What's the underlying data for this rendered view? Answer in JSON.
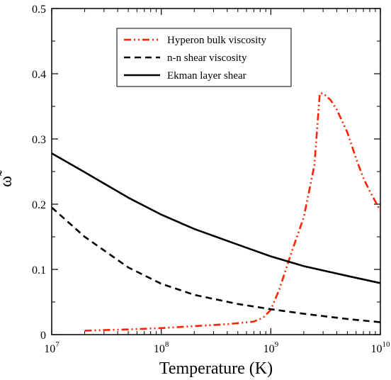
{
  "chart_data": {
    "type": "line",
    "xlabel": "Temperature (K)",
    "ylabel": "ω̃",
    "xscale": "log",
    "xlim": [
      10000000,
      10000000000
    ],
    "ylim": [
      0,
      0.5
    ],
    "grid": false,
    "legend_position": "top-center",
    "x_ticks": [
      {
        "value": 10000000,
        "base": "10",
        "exp": "7"
      },
      {
        "value": 100000000,
        "base": "10",
        "exp": "8"
      },
      {
        "value": 1000000000,
        "base": "10",
        "exp": "9"
      },
      {
        "value": 10000000000,
        "base": "10",
        "exp": "10"
      }
    ],
    "y_ticks": [
      {
        "value": 0,
        "label": "0"
      },
      {
        "value": 0.1,
        "label": "0.1"
      },
      {
        "value": 0.2,
        "label": "0.2"
      },
      {
        "value": 0.3,
        "label": "0.3"
      },
      {
        "value": 0.4,
        "label": "0.4"
      },
      {
        "value": 0.5,
        "label": "0.5"
      }
    ],
    "series": [
      {
        "name": "Hyperon bulk viscosity",
        "color": "#ff2200",
        "style": "dash-dot-dot",
        "x": [
          20000000,
          30000000,
          50000000,
          100000000,
          200000000,
          400000000,
          700000000,
          850000000,
          1000000000,
          1200000000,
          1500000000,
          2000000000,
          2500000000,
          2800000000,
          3000000000,
          3500000000,
          4000000000,
          5000000000,
          6000000000,
          7000000000,
          8000000000,
          10000000000
        ],
        "y": [
          0.006,
          0.007,
          0.008,
          0.01,
          0.013,
          0.016,
          0.02,
          0.026,
          0.038,
          0.07,
          0.12,
          0.18,
          0.26,
          0.37,
          0.37,
          0.36,
          0.345,
          0.31,
          0.27,
          0.24,
          0.22,
          0.19
        ]
      },
      {
        "name": "n-n shear viscosity",
        "color": "#000000",
        "style": "dashed",
        "x": [
          10000000,
          20000000,
          50000000,
          100000000,
          200000000,
          500000000,
          1000000000,
          2000000000,
          5000000000,
          10000000000
        ],
        "y": [
          0.195,
          0.15,
          0.103,
          0.078,
          0.061,
          0.047,
          0.039,
          0.032,
          0.024,
          0.019
        ]
      },
      {
        "name": "Ekman layer shear",
        "color": "#000000",
        "style": "solid",
        "x": [
          10000000,
          20000000,
          50000000,
          100000000,
          200000000,
          500000000,
          1000000000,
          2000000000,
          5000000000,
          10000000000
        ],
        "y": [
          0.278,
          0.249,
          0.21,
          0.184,
          0.162,
          0.138,
          0.12,
          0.105,
          0.09,
          0.079
        ]
      }
    ]
  }
}
